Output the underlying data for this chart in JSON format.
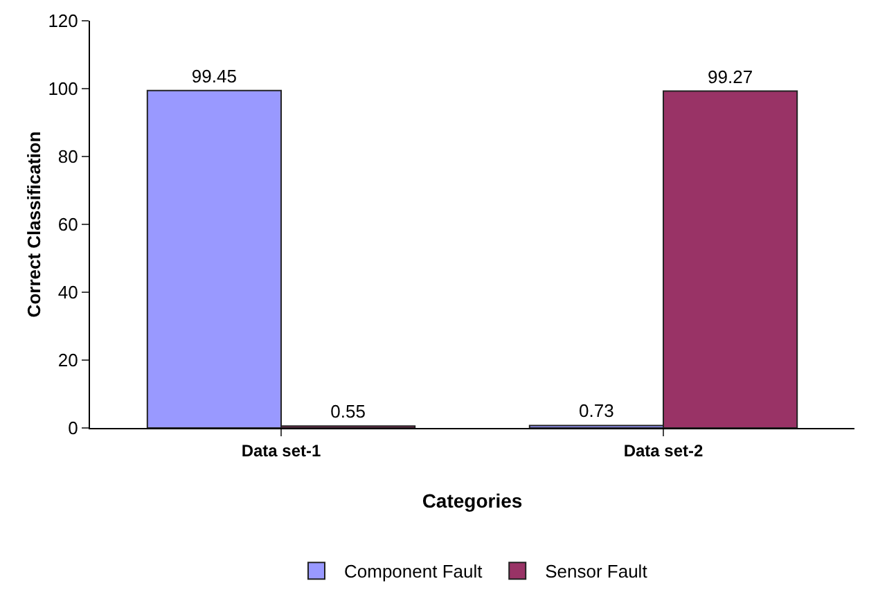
{
  "chart_data": {
    "type": "bar",
    "xlabel": "Categories",
    "ylabel": "Correct Classification",
    "categories": [
      "Data set-1",
      "Data set-2"
    ],
    "series": [
      {
        "name": "Component Fault",
        "color": "#9999ff",
        "values": [
          99.45,
          0.73
        ]
      },
      {
        "name": "Sensor Fault",
        "color": "#993366",
        "values": [
          0.55,
          99.27
        ]
      }
    ],
    "ylim": [
      0,
      120
    ],
    "yticks": [
      0,
      20,
      40,
      60,
      80,
      100,
      120
    ],
    "grid": false,
    "legend": "bottom",
    "data_labels": true
  }
}
